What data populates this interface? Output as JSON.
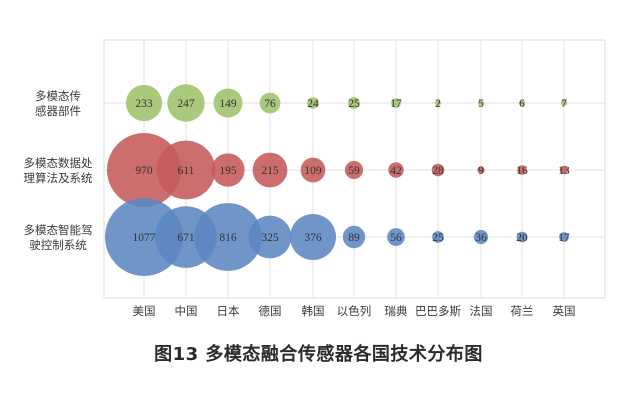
{
  "caption": "图13 多模态融合传感器各国技术分布图",
  "chart_data": {
    "type": "bubble",
    "countries": [
      "美国",
      "中国",
      "日本",
      "德国",
      "韩国",
      "以色列",
      "瑞典",
      "巴巴多斯",
      "法国",
      "荷兰",
      "英国"
    ],
    "categories": [
      [
        "多模态传",
        "感器部件"
      ],
      [
        "多模态数据处",
        "理算法及系统"
      ],
      [
        "多模态智能驾",
        "驶控制系统"
      ]
    ],
    "series": [
      {
        "color": "#9dc26b",
        "values": [
          233,
          247,
          149,
          76,
          24,
          25,
          17,
          2,
          5,
          6,
          7
        ]
      },
      {
        "color": "#c55a5a",
        "values": [
          970,
          611,
          195,
          215,
          109,
          59,
          42,
          28,
          9,
          16,
          13
        ]
      },
      {
        "color": "#5b86c2",
        "values": [
          1077,
          671,
          816,
          325,
          376,
          89,
          56,
          25,
          36,
          20,
          17
        ]
      }
    ],
    "grid": true
  }
}
